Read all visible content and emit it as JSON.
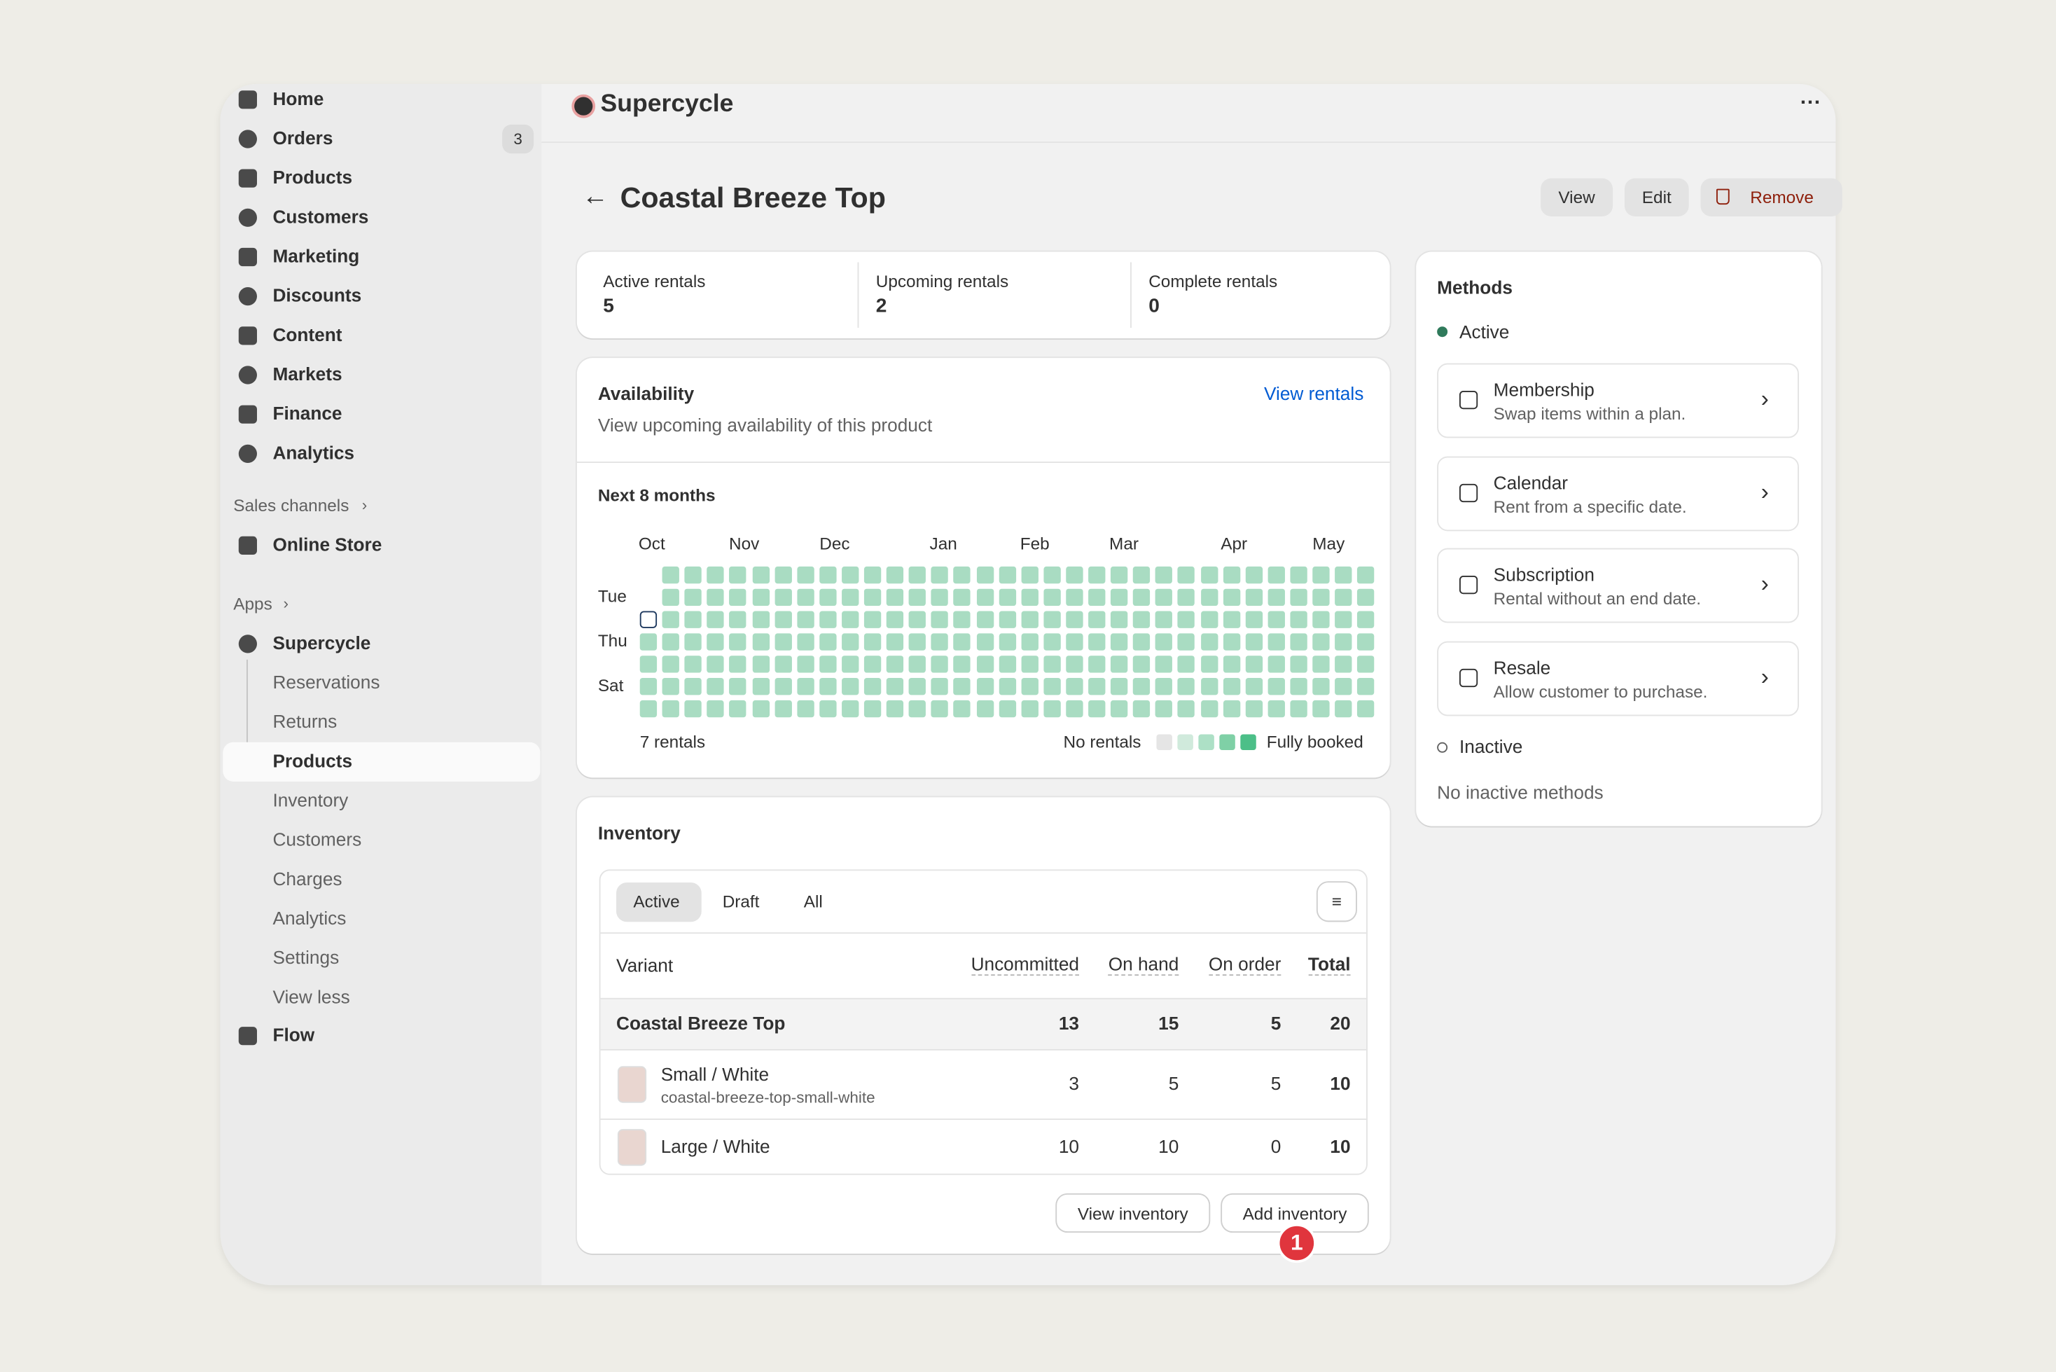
{
  "sidebar": {
    "nav": [
      {
        "label": "Home"
      },
      {
        "label": "Orders",
        "badge": 3
      },
      {
        "label": "Products"
      },
      {
        "label": "Customers"
      },
      {
        "label": "Marketing"
      },
      {
        "label": "Discounts"
      },
      {
        "label": "Content"
      },
      {
        "label": "Markets"
      },
      {
        "label": "Finance"
      },
      {
        "label": "Analytics"
      }
    ],
    "sales_channels": "Sales channels",
    "online_store": "Online Store",
    "apps": "Apps",
    "app_name": "Supercycle",
    "app_items": [
      "Reservations",
      "Returns",
      "Products",
      "Inventory",
      "Customers",
      "Charges",
      "Analytics",
      "Settings",
      "View less"
    ],
    "flow": "Flow"
  },
  "topbar": {
    "brand": "Supercycle"
  },
  "header": {
    "title": "Coastal Breeze Top",
    "buttons": [
      "View",
      "Edit",
      "Remove"
    ]
  },
  "stats": [
    {
      "label": "Active rentals",
      "value": 5
    },
    {
      "label": "Upcoming rentals",
      "value": 2
    },
    {
      "label": "Complete rentals",
      "value": 0
    }
  ],
  "availability": {
    "title": "Availability",
    "link": "View rentals",
    "subtitle": "View upcoming availability of this product",
    "period": "Next 8 months",
    "months": [
      "Oct",
      "Nov",
      "Dec",
      "Jan",
      "Feb",
      "Mar",
      "Apr",
      "May"
    ],
    "days": [
      "Tue",
      "Thu",
      "Sat"
    ],
    "total": "7 rentals",
    "legend_low": "No rentals",
    "legend_high": "Fully booked"
  },
  "inventory": {
    "title": "Inventory",
    "tabs": [
      "Active",
      "Draft",
      "All"
    ],
    "columns": [
      "Variant",
      "Uncommitted",
      "On hand",
      "On order",
      "Total"
    ],
    "rows": [
      {
        "variant": "Coastal Breeze Top",
        "values": [
          13,
          15,
          5,
          20
        ]
      },
      {
        "variant": "Small / White",
        "sku": "coastal-breeze-top-small-white",
        "values": [
          3,
          5,
          5,
          10
        ]
      },
      {
        "variant": "Large / White",
        "values": [
          10,
          10,
          0,
          10
        ]
      }
    ],
    "buttons": [
      "View inventory",
      "Add inventory"
    ],
    "badge": 1
  },
  "methods": {
    "title": "Methods",
    "active": "Active",
    "items": [
      {
        "name": "Membership",
        "desc": "Swap items within a plan."
      },
      {
        "name": "Calendar",
        "desc": "Rent from a specific date."
      },
      {
        "name": "Subscription",
        "desc": "Rental without an end date."
      },
      {
        "name": "Resale",
        "desc": "Allow customer to purchase."
      }
    ],
    "inactive": "Inactive",
    "empty": "No inactive methods"
  }
}
